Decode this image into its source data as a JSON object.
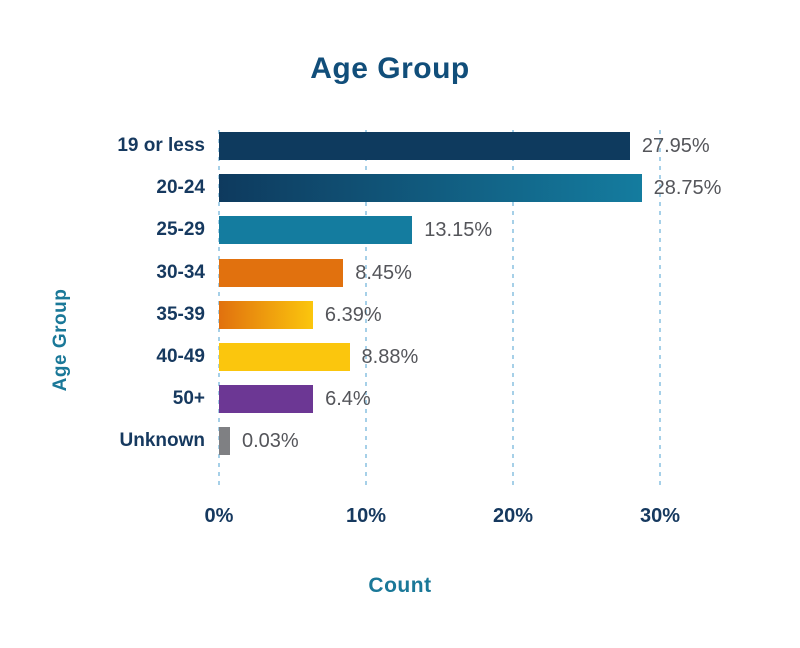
{
  "title": "Age Group",
  "axes": {
    "x_title": "Count",
    "y_title": "Age Group"
  },
  "colors": {
    "background": "#FFFFFF",
    "title": "#114E7A",
    "axis_title": "#1A7898",
    "category_label": "#16395F",
    "tick_label": "#16395F",
    "value_label": "#54555A",
    "gridline": "#A6D0E8",
    "bar_navy": "#0E3A5E",
    "bar_teal": "#147C9F",
    "bar_orange": "#E1710E",
    "bar_yellow": "#FBC60D",
    "bar_purple": "#6C3794",
    "bar_gray": "#7F8083"
  },
  "chart_data": {
    "type": "bar",
    "orientation": "horizontal",
    "title": "Age Group",
    "xlabel": "Count",
    "ylabel": "Age Group",
    "categories": [
      "19 or less",
      "20-24",
      "25-29",
      "30-34",
      "35-39",
      "40-49",
      "50+",
      "Unknown"
    ],
    "values": [
      27.95,
      28.75,
      13.15,
      8.45,
      6.39,
      8.88,
      6.4,
      0.03
    ],
    "value_labels": [
      "27.95%",
      "28.75%",
      "13.15%",
      "8.45%",
      "6.39%",
      "8.88%",
      "6.4%",
      "0.03%"
    ],
    "bar_colors": [
      {
        "from": "#0E3A5E",
        "to": "#0E3A5E"
      },
      {
        "from": "#0E3A5E",
        "to": "#147C9F"
      },
      {
        "from": "#147C9F",
        "to": "#147C9F"
      },
      {
        "from": "#E1710E",
        "to": "#E1710E"
      },
      {
        "from": "#E1710E",
        "to": "#FBC60D"
      },
      {
        "from": "#FBC60D",
        "to": "#FBC60D"
      },
      {
        "from": "#6C3794",
        "to": "#6C3794"
      },
      {
        "from": "#7F8083",
        "to": "#7F8083"
      }
    ],
    "x_ticks": [
      {
        "label": "0%",
        "value": 0
      },
      {
        "label": "10%",
        "value": 10
      },
      {
        "label": "20%",
        "value": 20
      },
      {
        "label": "30%",
        "value": 30
      }
    ],
    "xlim": [
      0,
      35
    ],
    "grid": "vertical-dashed",
    "legend": "none"
  }
}
